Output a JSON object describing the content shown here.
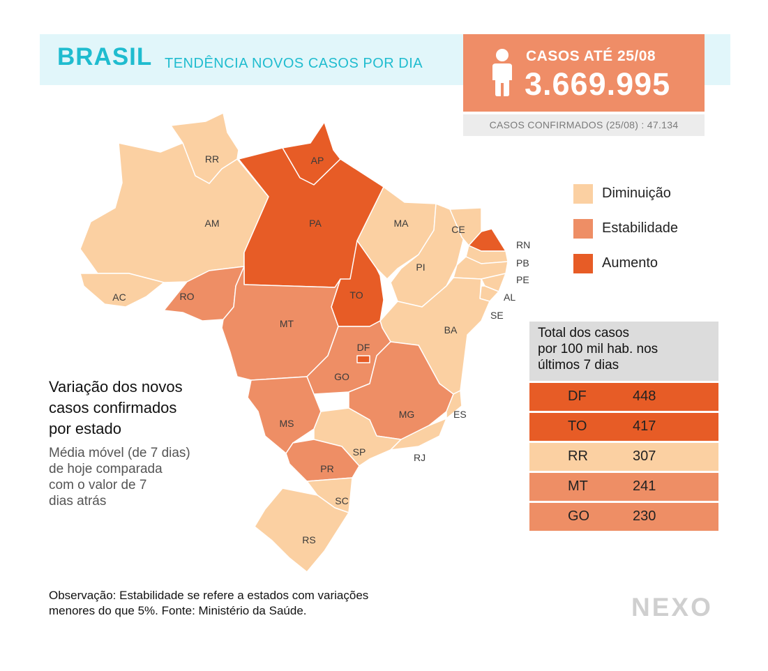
{
  "header": {
    "title": "BRASIL",
    "subtitle": "TENDÊNCIA NOVOS CASOS POR DIA",
    "cases_label": "CASOS ATÉ 25/08",
    "cases_value": "3.669.995",
    "confirmed_text": "CASOS CONFIRMADOS (25/08) : 47.134",
    "icon": "person-icon"
  },
  "colors": {
    "diminuicao": "#fbd0a2",
    "estabilidade": "#ee8e65",
    "aumento": "#e75c26",
    "header_band": "#e1f6fa",
    "title": "#1fbccf",
    "cases_box": "#ef8d67"
  },
  "legend": [
    {
      "label": "Diminuição",
      "category": "diminuicao"
    },
    {
      "label": "Estabilidade",
      "category": "estabilidade"
    },
    {
      "label": "Aumento",
      "category": "aumento"
    }
  ],
  "states": [
    {
      "uf": "RR",
      "category": "diminuicao"
    },
    {
      "uf": "AP",
      "category": "aumento"
    },
    {
      "uf": "AM",
      "category": "diminuicao"
    },
    {
      "uf": "PA",
      "category": "aumento"
    },
    {
      "uf": "MA",
      "category": "diminuicao"
    },
    {
      "uf": "CE",
      "category": "diminuicao"
    },
    {
      "uf": "RN",
      "category": "aumento"
    },
    {
      "uf": "PB",
      "category": "diminuicao"
    },
    {
      "uf": "PE",
      "category": "diminuicao"
    },
    {
      "uf": "AL",
      "category": "diminuicao"
    },
    {
      "uf": "SE",
      "category": "diminuicao"
    },
    {
      "uf": "PI",
      "category": "diminuicao"
    },
    {
      "uf": "AC",
      "category": "diminuicao"
    },
    {
      "uf": "RO",
      "category": "estabilidade"
    },
    {
      "uf": "TO",
      "category": "aumento"
    },
    {
      "uf": "MT",
      "category": "estabilidade"
    },
    {
      "uf": "BA",
      "category": "diminuicao"
    },
    {
      "uf": "DF",
      "category": "aumento"
    },
    {
      "uf": "GO",
      "category": "estabilidade"
    },
    {
      "uf": "MG",
      "category": "estabilidade"
    },
    {
      "uf": "ES",
      "category": "diminuicao"
    },
    {
      "uf": "MS",
      "category": "estabilidade"
    },
    {
      "uf": "SP",
      "category": "diminuicao"
    },
    {
      "uf": "RJ",
      "category": "diminuicao"
    },
    {
      "uf": "PR",
      "category": "estabilidade"
    },
    {
      "uf": "SC",
      "category": "diminuicao"
    },
    {
      "uf": "RS",
      "category": "diminuicao"
    }
  ],
  "table": {
    "header": [
      "Total dos casos",
      "por 100 mil hab. nos",
      "últimos 7 dias"
    ],
    "rows": [
      {
        "uf": "DF",
        "value": "448",
        "category": "aumento"
      },
      {
        "uf": "TO",
        "value": "417",
        "category": "aumento"
      },
      {
        "uf": "RR",
        "value": "307",
        "category": "diminuicao"
      },
      {
        "uf": "MT",
        "value": "241",
        "category": "estabilidade"
      },
      {
        "uf": "GO",
        "value": "230",
        "category": "estabilidade"
      }
    ]
  },
  "description": {
    "title": [
      "Variação dos novos",
      "casos confirmados",
      "por estado"
    ],
    "subtitle": [
      "Média móvel (de 7 dias)",
      "de hoje comparada",
      "com o valor de 7",
      "dias atrás"
    ]
  },
  "note": [
    "Observação: Estabilidade se refere a estados com variações",
    "menores do que 5%. Fonte: Ministério da Saúde."
  ],
  "brand": "NEXO"
}
